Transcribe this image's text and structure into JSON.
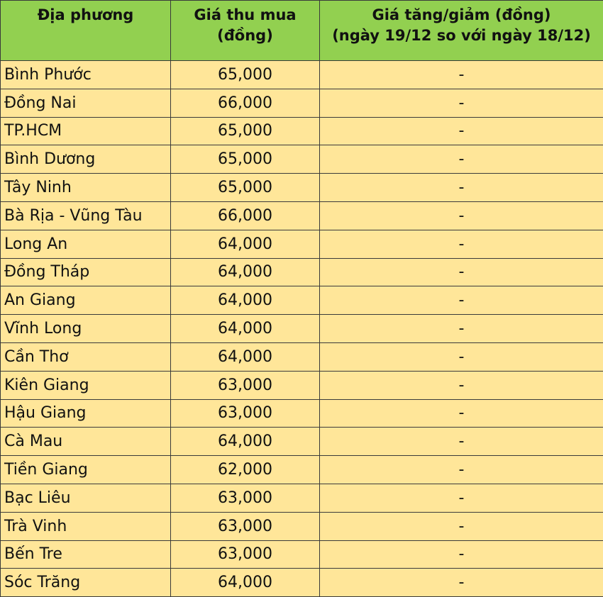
{
  "header": {
    "col1": "Địa phương",
    "col2_line1": "Giá thu mua",
    "col2_line2": "(đồng)",
    "col3_line1": "Giá tăng/giảm (đồng)",
    "col3_line2": "(ngày 19/12 so với ngày 18/12)"
  },
  "colors": {
    "header_bg": "#92D050",
    "row_bg": "#FFE699"
  },
  "rows": [
    {
      "name": "Bình Phước",
      "price": "65,000",
      "change": "-"
    },
    {
      "name": "Đồng Nai",
      "price": "66,000",
      "change": "-"
    },
    {
      "name": "TP.HCM",
      "price": "65,000",
      "change": "-"
    },
    {
      "name": "Bình Dương",
      "price": "65,000",
      "change": "-"
    },
    {
      "name": "Tây Ninh",
      "price": "65,000",
      "change": "-"
    },
    {
      "name": "Bà Rịa - Vũng Tàu",
      "price": "66,000",
      "change": "-"
    },
    {
      "name": "Long An",
      "price": "64,000",
      "change": "-"
    },
    {
      "name": "Đồng Tháp",
      "price": "64,000",
      "change": "-"
    },
    {
      "name": "An Giang",
      "price": "64,000",
      "change": "-"
    },
    {
      "name": "Vĩnh Long",
      "price": "64,000",
      "change": "-"
    },
    {
      "name": "Cần Thơ",
      "price": "64,000",
      "change": "-"
    },
    {
      "name": "Kiên Giang",
      "price": "63,000",
      "change": "-"
    },
    {
      "name": "Hậu Giang",
      "price": "63,000",
      "change": "-"
    },
    {
      "name": "Cà Mau",
      "price": "64,000",
      "change": "-"
    },
    {
      "name": "Tiền Giang",
      "price": "62,000",
      "change": "-"
    },
    {
      "name": "Bạc Liêu",
      "price": "63,000",
      "change": "-"
    },
    {
      "name": "Trà Vinh",
      "price": "63,000",
      "change": "-"
    },
    {
      "name": "Bến Tre",
      "price": "63,000",
      "change": "-"
    },
    {
      "name": "Sóc Trăng",
      "price": "64,000",
      "change": "-"
    }
  ]
}
